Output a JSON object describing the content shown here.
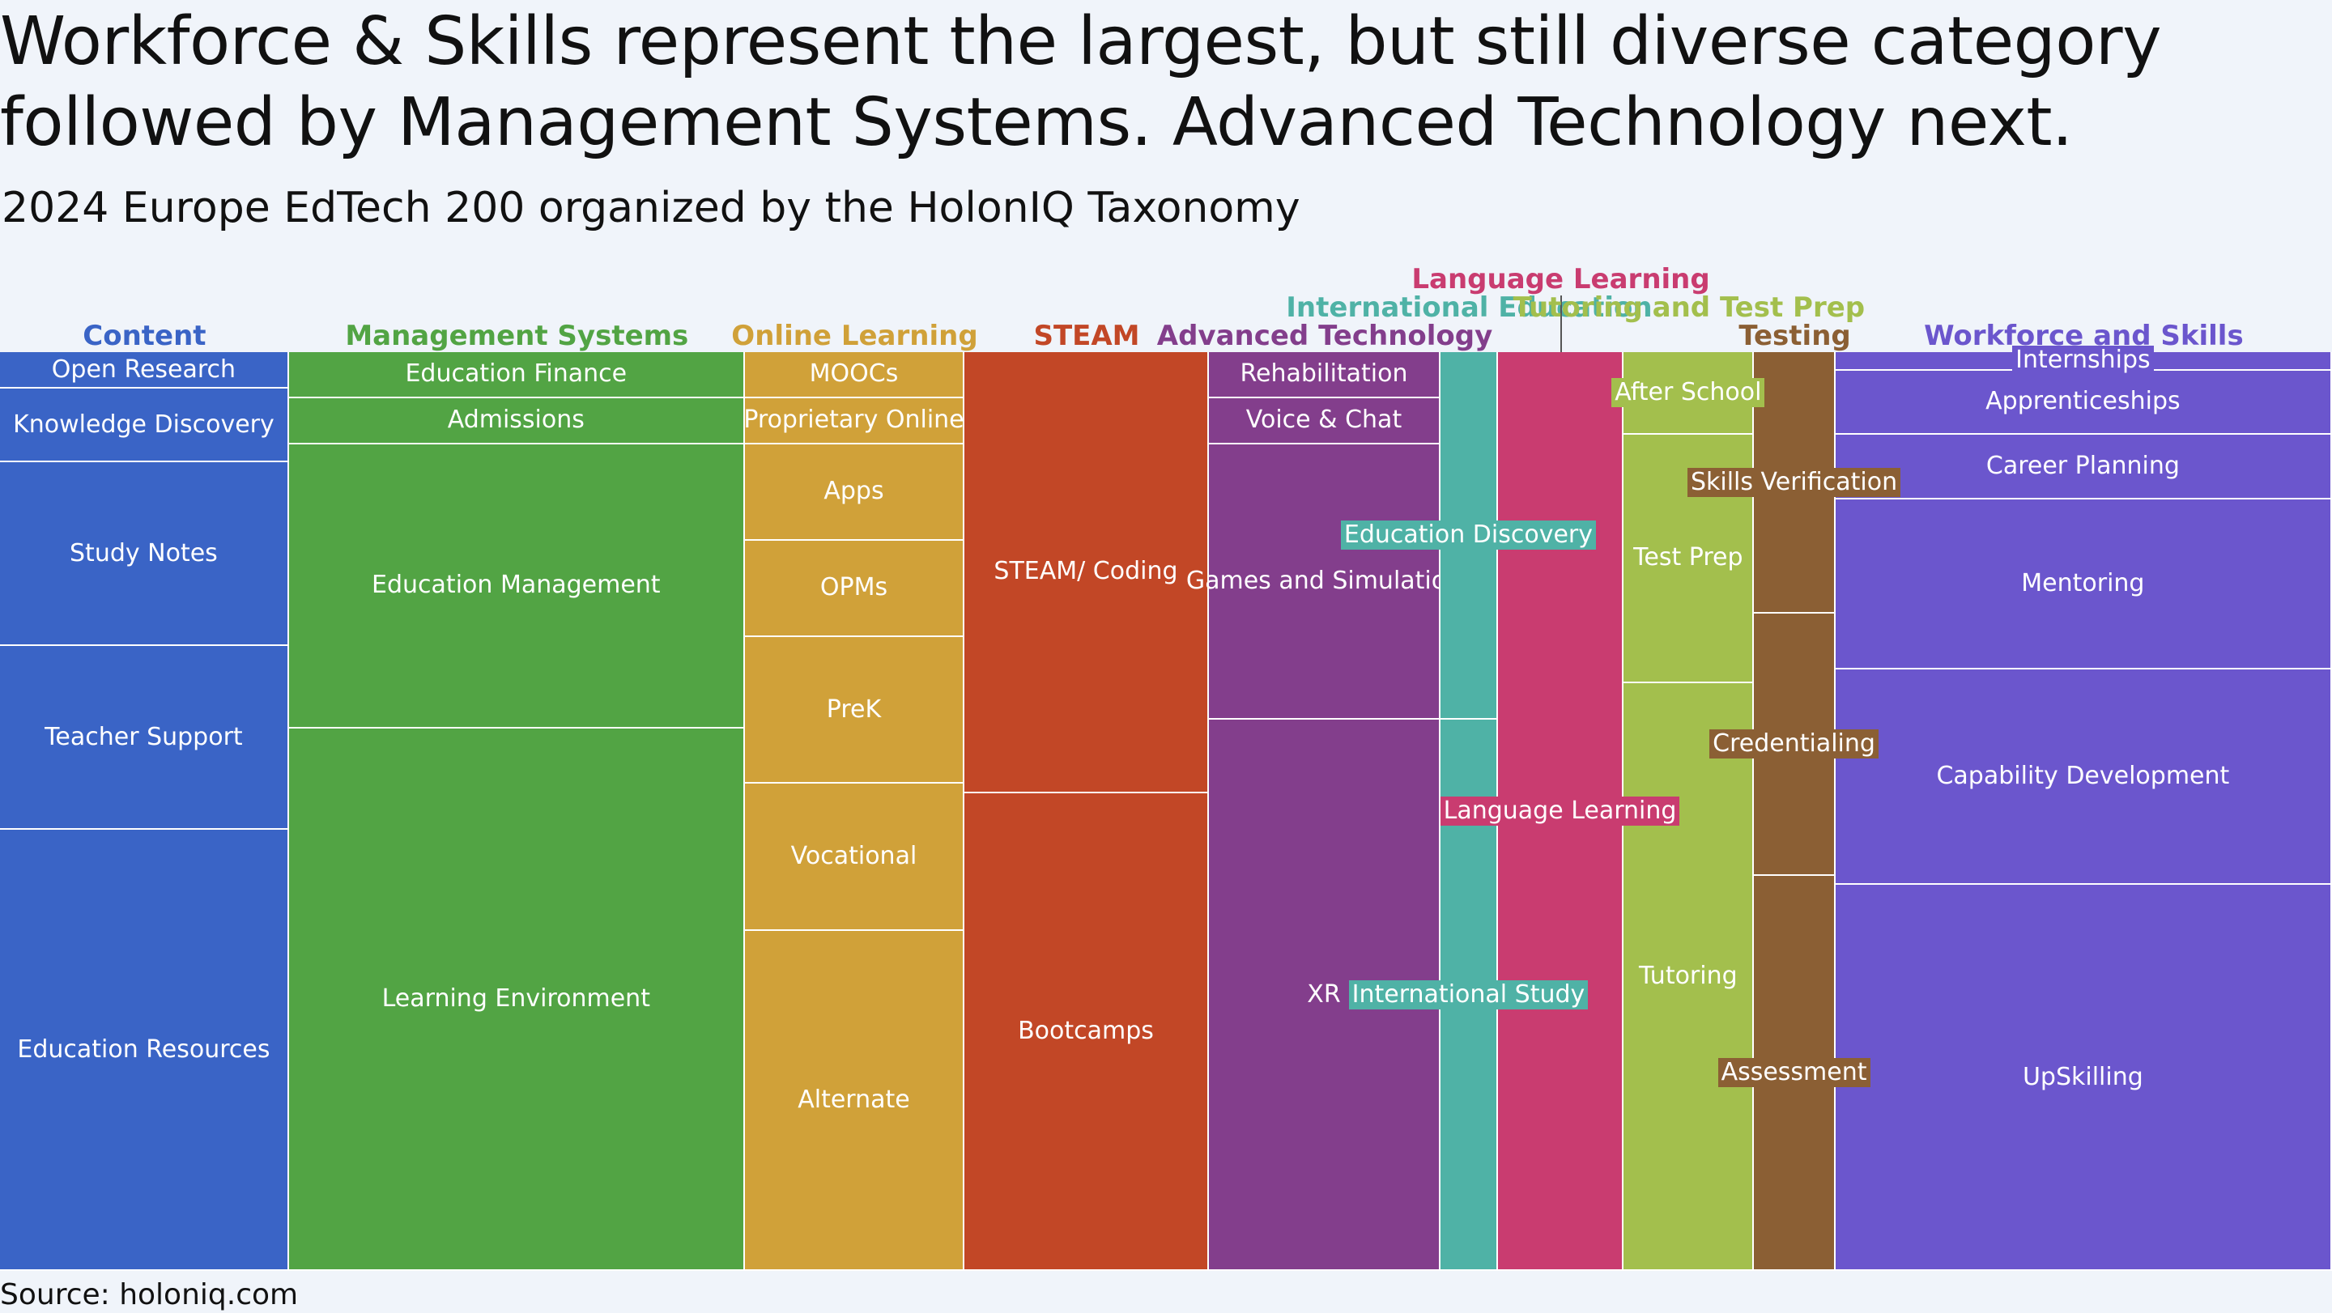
{
  "header": {
    "title_line1": "Workforce & Skills represent the largest, but still diverse category",
    "title_line2": "followed by Management Systems. Advanced Technology next.",
    "subtitle": "2024 Europe EdTech 200 organized by the HolonIQ Taxonomy"
  },
  "footer": {
    "source": "Source: holoniq.com"
  },
  "chart_data": {
    "type": "mekko",
    "categories": [
      {
        "name": "Content",
        "width": 35.5,
        "color": "#3a64c6",
        "label_level": 0,
        "segments": [
          {
            "name": "Open Research",
            "value": 4
          },
          {
            "name": "Knowledge Discovery",
            "value": 8
          },
          {
            "name": "Study Notes",
            "value": 20
          },
          {
            "name": "Teacher Support",
            "value": 20
          },
          {
            "name": "Education Resources",
            "value": 48
          }
        ]
      },
      {
        "name": "Management Systems",
        "width": 56,
        "color": "#52a444",
        "label_level": 0,
        "segments": [
          {
            "name": "Education Finance",
            "value": 5
          },
          {
            "name": "Admissions",
            "value": 5
          },
          {
            "name": "Education Management",
            "value": 31
          },
          {
            "name": "Learning Environment",
            "value": 59
          }
        ]
      },
      {
        "name": "Online Learning",
        "width": 27,
        "color": "#d0a139",
        "label_level": 0,
        "segments": [
          {
            "name": "MOOCs",
            "value": 5
          },
          {
            "name": "Proprietary Online",
            "value": 5
          },
          {
            "name": "Apps",
            "value": 10.5
          },
          {
            "name": "OPMs",
            "value": 10.5
          },
          {
            "name": "PreK",
            "value": 16
          },
          {
            "name": "Vocational",
            "value": 16
          },
          {
            "name": "Alternate",
            "value": 37
          }
        ]
      },
      {
        "name": "STEAM",
        "width": 30,
        "color": "#c24726",
        "label_level": 0,
        "segments": [
          {
            "name": "STEAM/ Coding",
            "value": 48
          },
          {
            "name": "Bootcamps",
            "value": 52
          }
        ]
      },
      {
        "name": "Advanced Technology",
        "width": 28.5,
        "color": "#833e8c",
        "label_level": 0,
        "segments": [
          {
            "name": "Rehabilitation",
            "value": 5
          },
          {
            "name": "Voice & Chat",
            "value": 5
          },
          {
            "name": "Games and Simulation",
            "value": 30
          },
          {
            "name": "XR",
            "value": 60
          }
        ]
      },
      {
        "name": "International Education",
        "width": 7,
        "color": "#4fb2a6",
        "label_level": 1,
        "segments": [
          {
            "name": "Education Discovery",
            "value": 40,
            "boxed": true
          },
          {
            "name": "International Study",
            "value": 60,
            "boxed": true
          }
        ]
      },
      {
        "name": "Language Learning",
        "width": 15.5,
        "color": "#c93c70",
        "label_level": 2,
        "segments": [
          {
            "name": "Language Learning",
            "value": 100,
            "boxed": true
          }
        ]
      },
      {
        "name": "Tutoring and Test Prep",
        "width": 16,
        "color": "#a3bf4d",
        "label_level": 1,
        "segments": [
          {
            "name": "After School",
            "value": 9,
            "boxed": true
          },
          {
            "name": "Test Prep",
            "value": 27
          },
          {
            "name": "Tutoring",
            "value": 64
          }
        ]
      },
      {
        "name": "Testing",
        "width": 10,
        "color": "#8b5f34",
        "label_level": 0,
        "segments": [
          {
            "name": "Skills Verification",
            "value": 28.5,
            "boxed": true
          },
          {
            "name": "Credentialing",
            "value": 28.5,
            "boxed": true
          },
          {
            "name": "Assessment",
            "value": 43,
            "boxed": true
          }
        ]
      },
      {
        "name": "Workforce and Skills",
        "width": 61,
        "color": "#6b56cd",
        "label_level": 0,
        "segments": [
          {
            "name": "Internships",
            "value": 2,
            "boxed": true
          },
          {
            "name": "Apprenticeships",
            "value": 7
          },
          {
            "name": "Career Planning",
            "value": 7
          },
          {
            "name": "Mentoring",
            "value": 18.5
          },
          {
            "name": "Capability Development",
            "value": 23.5
          },
          {
            "name": "UpSkilling",
            "value": 42
          }
        ]
      }
    ]
  }
}
